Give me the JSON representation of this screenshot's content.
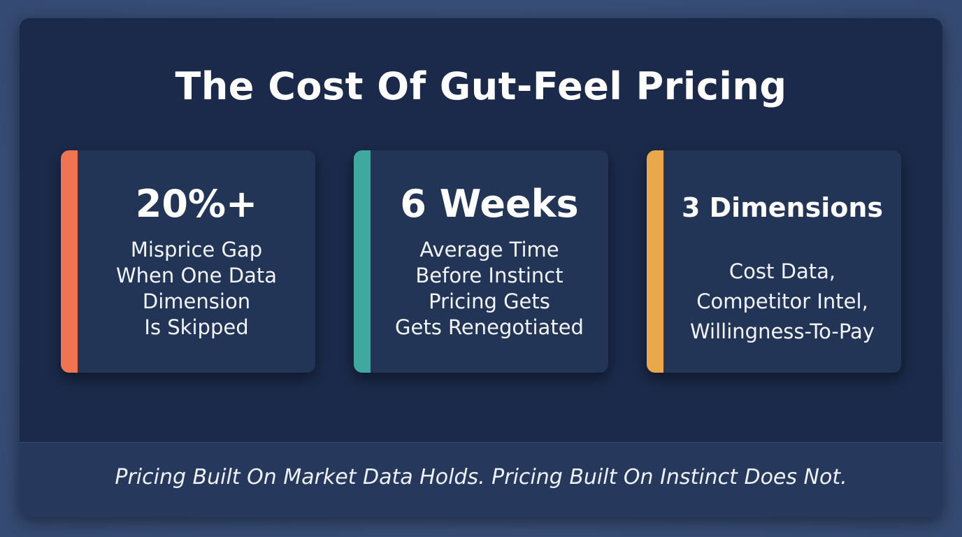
{
  "title": "The Cost Of Gut-Feel Pricing",
  "cards": [
    {
      "stat": "20%+",
      "description": [
        "Misprice Gap",
        "When One Data",
        "Dimension",
        "Is Skipped"
      ]
    },
    {
      "stat": "6 Weeks",
      "description": [
        "Average Time",
        "Before Instinct",
        "Pricing Gets",
        "Gets Renegotiated"
      ]
    },
    {
      "stat": "3 Dimensions",
      "description": [
        "Cost Data,",
        "Competitor Intel,",
        "Willingness-To-Pay"
      ]
    }
  ],
  "footer": "Pricing Built On Market Data Holds. Pricing Built On Instinct Does Not."
}
